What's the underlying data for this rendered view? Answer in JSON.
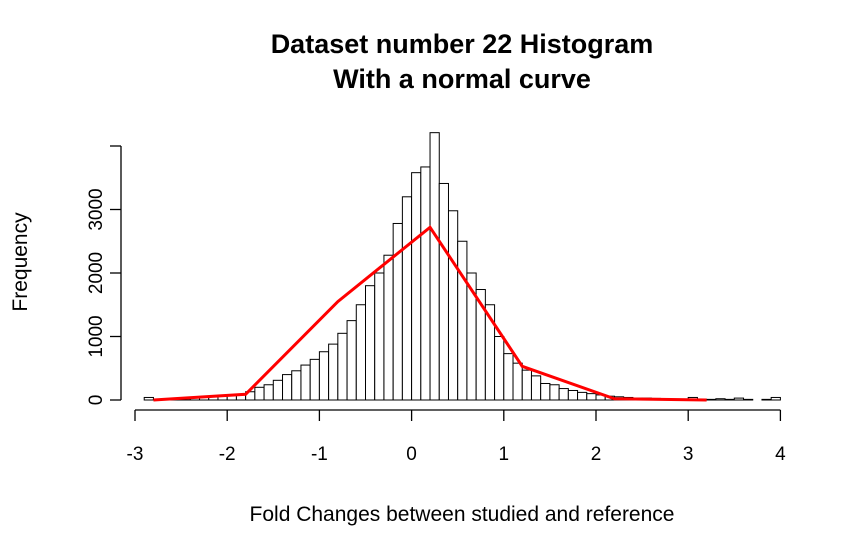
{
  "chart_data": {
    "type": "bar",
    "title": "Dataset number 22 Histogram",
    "subtitle": "With a normal curve",
    "xlabel": "Fold Changes between studied and reference",
    "ylabel": "Frequency",
    "xlim": [
      -3,
      4
    ],
    "ylim": [
      0,
      4000
    ],
    "x_ticks": [
      "-3",
      "-2",
      "-1",
      "0",
      "1",
      "2",
      "3",
      "4"
    ],
    "y_ticks": [
      "0",
      "1000",
      "2000",
      "3000"
    ],
    "bin_width": 0.1,
    "bins": [
      {
        "x0": -2.9,
        "count": 40
      },
      {
        "x0": -2.8,
        "count": 10
      },
      {
        "x0": -2.7,
        "count": 10
      },
      {
        "x0": -2.6,
        "count": 15
      },
      {
        "x0": -2.5,
        "count": 20
      },
      {
        "x0": -2.4,
        "count": 40
      },
      {
        "x0": -2.3,
        "count": 40
      },
      {
        "x0": -2.2,
        "count": 50
      },
      {
        "x0": -2.1,
        "count": 60
      },
      {
        "x0": -2.0,
        "count": 70
      },
      {
        "x0": -1.9,
        "count": 90
      },
      {
        "x0": -1.8,
        "count": 130
      },
      {
        "x0": -1.7,
        "count": 200
      },
      {
        "x0": -1.6,
        "count": 240
      },
      {
        "x0": -1.5,
        "count": 310
      },
      {
        "x0": -1.4,
        "count": 400
      },
      {
        "x0": -1.3,
        "count": 460
      },
      {
        "x0": -1.2,
        "count": 550
      },
      {
        "x0": -1.1,
        "count": 640
      },
      {
        "x0": -1.0,
        "count": 760
      },
      {
        "x0": -0.9,
        "count": 880
      },
      {
        "x0": -0.8,
        "count": 1050
      },
      {
        "x0": -0.7,
        "count": 1250
      },
      {
        "x0": -0.6,
        "count": 1500
      },
      {
        "x0": -0.5,
        "count": 1800
      },
      {
        "x0": -0.4,
        "count": 2000
      },
      {
        "x0": -0.3,
        "count": 2280
      },
      {
        "x0": -0.2,
        "count": 2780
      },
      {
        "x0": -0.1,
        "count": 3200
      },
      {
        "x0": 0.0,
        "count": 3580
      },
      {
        "x0": 0.1,
        "count": 3670
      },
      {
        "x0": 0.2,
        "count": 4210
      },
      {
        "x0": 0.3,
        "count": 3410
      },
      {
        "x0": 0.4,
        "count": 2980
      },
      {
        "x0": 0.5,
        "count": 2500
      },
      {
        "x0": 0.6,
        "count": 2000
      },
      {
        "x0": 0.7,
        "count": 1740
      },
      {
        "x0": 0.8,
        "count": 1500
      },
      {
        "x0": 0.9,
        "count": 1000
      },
      {
        "x0": 1.0,
        "count": 730
      },
      {
        "x0": 1.1,
        "count": 580
      },
      {
        "x0": 1.2,
        "count": 470
      },
      {
        "x0": 1.3,
        "count": 380
      },
      {
        "x0": 1.4,
        "count": 260
      },
      {
        "x0": 1.5,
        "count": 240
      },
      {
        "x0": 1.6,
        "count": 180
      },
      {
        "x0": 1.7,
        "count": 150
      },
      {
        "x0": 1.8,
        "count": 120
      },
      {
        "x0": 1.9,
        "count": 100
      },
      {
        "x0": 2.0,
        "count": 80
      },
      {
        "x0": 2.1,
        "count": 60
      },
      {
        "x0": 2.2,
        "count": 50
      },
      {
        "x0": 2.3,
        "count": 40
      },
      {
        "x0": 2.4,
        "count": 30
      },
      {
        "x0": 2.5,
        "count": 30
      },
      {
        "x0": 2.6,
        "count": 25
      },
      {
        "x0": 2.7,
        "count": 20
      },
      {
        "x0": 2.8,
        "count": 15
      },
      {
        "x0": 2.9,
        "count": 10
      },
      {
        "x0": 3.0,
        "count": 40
      },
      {
        "x0": 3.1,
        "count": 10
      },
      {
        "x0": 3.2,
        "count": 10
      },
      {
        "x0": 3.3,
        "count": 20
      },
      {
        "x0": 3.4,
        "count": 10
      },
      {
        "x0": 3.5,
        "count": 30
      },
      {
        "x0": 3.6,
        "count": 10
      },
      {
        "x0": 3.7,
        "count": 0
      },
      {
        "x0": 3.8,
        "count": 10
      },
      {
        "x0": 3.9,
        "count": 40
      }
    ],
    "series": [
      {
        "type": "line",
        "color": "#ff0000",
        "x": [
          -2.8,
          -1.8,
          -0.8,
          0.2,
          1.2,
          2.2,
          3.2
        ],
        "y": [
          0,
          90,
          1550,
          2720,
          530,
          20,
          0
        ]
      }
    ],
    "bar_fill": "#ffffff",
    "bar_stroke": "#000000",
    "grid": false,
    "legend": "none"
  }
}
